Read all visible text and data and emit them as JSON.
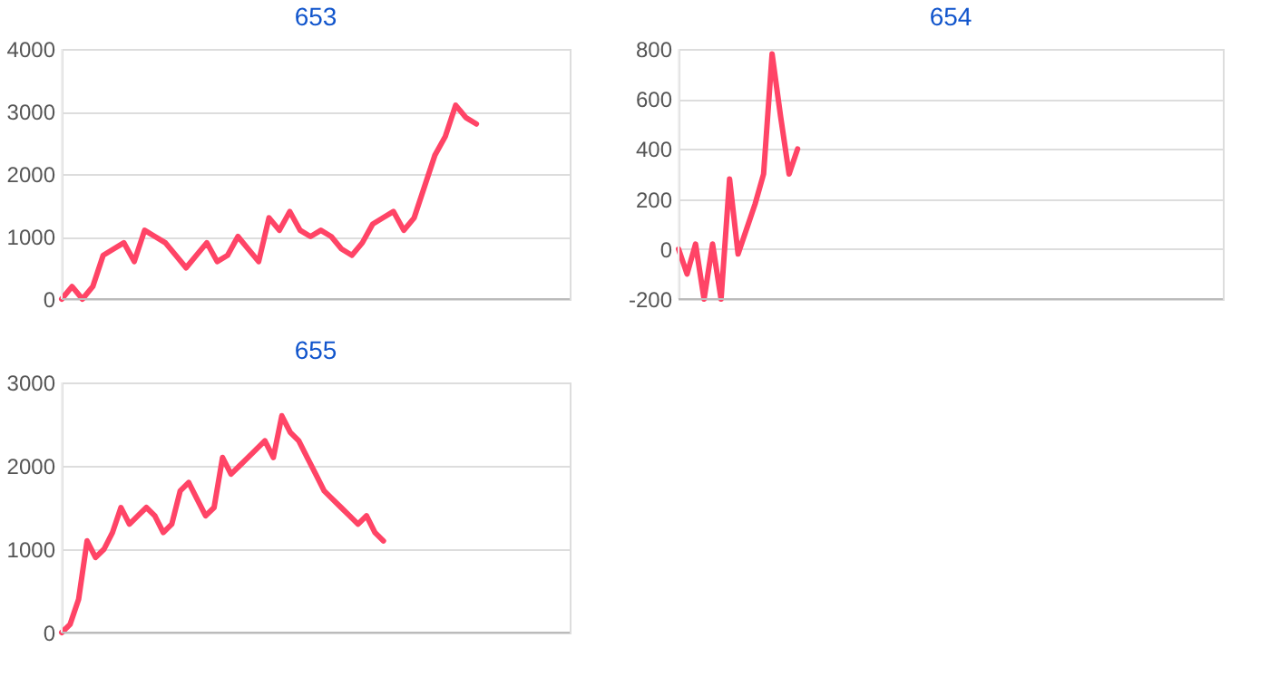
{
  "chart_data": [
    {
      "type": "line",
      "title": "653",
      "color": "#ff4466",
      "grid": "y",
      "tick_labels": "y",
      "ylim": [
        0,
        4000
      ],
      "yticks": [
        0,
        1000,
        2000,
        3000,
        4000
      ],
      "categories": [
        null,
        null,
        null,
        null,
        null,
        null,
        null,
        null,
        null,
        null,
        null,
        null,
        null,
        null,
        null,
        null,
        null,
        null,
        null,
        null,
        null,
        null,
        null,
        null,
        null,
        null,
        null,
        null,
        null,
        null,
        null,
        null,
        null,
        null,
        null,
        null,
        null,
        null,
        null,
        null,
        null,
        null,
        null,
        null,
        null,
        null,
        null,
        null,
        null,
        null
      ],
      "values": [
        0,
        200,
        0,
        200,
        700,
        800,
        900,
        600,
        1100,
        1000,
        900,
        700,
        500,
        700,
        900,
        600,
        700,
        1000,
        800,
        600,
        1300,
        1100,
        1400,
        1100,
        1000,
        1100,
        1000,
        800,
        700,
        900,
        1200,
        1300,
        1400,
        1100,
        1300,
        1800,
        2300,
        2600,
        3100,
        2900,
        2800,
        null,
        null,
        null,
        null,
        null,
        null,
        null,
        null,
        null
      ]
    },
    {
      "type": "line",
      "title": "654",
      "color": "#ff4466",
      "grid": "y",
      "tick_labels": "y",
      "ylim": [
        -200,
        800
      ],
      "yticks": [
        -200,
        0,
        200,
        400,
        600,
        800
      ],
      "categories": [
        null,
        null,
        null,
        null,
        null,
        null,
        null,
        null,
        null,
        null,
        null,
        null,
        null,
        null,
        null,
        null,
        null,
        null,
        null,
        null,
        null,
        null,
        null,
        null,
        null,
        null,
        null,
        null,
        null,
        null,
        null,
        null,
        null,
        null,
        null,
        null,
        null,
        null,
        null,
        null,
        null,
        null,
        null,
        null,
        null,
        null,
        null,
        null,
        null,
        null,
        null,
        null,
        null,
        null,
        null,
        null,
        null,
        null,
        null,
        null,
        null,
        null,
        null,
        null,
        null
      ],
      "values": [
        0,
        -100,
        20,
        -200,
        20,
        -200,
        280,
        -20,
        80,
        180,
        300,
        780,
        530,
        300,
        400,
        null,
        null,
        null,
        null,
        null,
        null,
        null,
        null,
        null,
        null,
        null,
        null,
        null,
        null,
        null,
        null,
        null,
        null,
        null,
        null,
        null,
        null,
        null,
        null,
        null,
        null,
        null,
        null,
        null,
        null,
        null,
        null,
        null,
        null,
        null,
        null,
        null,
        null,
        null,
        null,
        null,
        null,
        null,
        null,
        null,
        null,
        null,
        null,
        null,
        null
      ]
    },
    {
      "type": "line",
      "title": "655",
      "color": "#ff4466",
      "grid": "y",
      "tick_labels": "y",
      "ylim": [
        0,
        3000
      ],
      "yticks": [
        0,
        1000,
        2000,
        3000
      ],
      "categories": [
        null,
        null,
        null,
        null,
        null,
        null,
        null,
        null,
        null,
        null,
        null,
        null,
        null,
        null,
        null,
        null,
        null,
        null,
        null,
        null,
        null,
        null,
        null,
        null,
        null,
        null,
        null,
        null,
        null,
        null,
        null,
        null,
        null,
        null,
        null,
        null,
        null,
        null,
        null,
        null,
        null,
        null,
        null,
        null,
        null,
        null,
        null,
        null,
        null,
        null,
        null,
        null,
        null,
        null,
        null,
        null,
        null,
        null,
        null,
        null,
        null
      ],
      "values": [
        0,
        100,
        400,
        1100,
        900,
        1000,
        1200,
        1500,
        1300,
        1400,
        1500,
        1400,
        1200,
        1300,
        1700,
        1800,
        1600,
        1400,
        1500,
        2100,
        1900,
        2000,
        2100,
        2200,
        2300,
        2100,
        2600,
        2400,
        2300,
        2100,
        1900,
        1700,
        1600,
        1500,
        1400,
        1300,
        1400,
        1200,
        1100,
        null,
        null,
        null,
        null,
        null,
        null,
        null,
        null,
        null,
        null,
        null,
        null,
        null,
        null,
        null,
        null,
        null,
        null,
        null,
        null,
        null,
        null
      ]
    }
  ]
}
